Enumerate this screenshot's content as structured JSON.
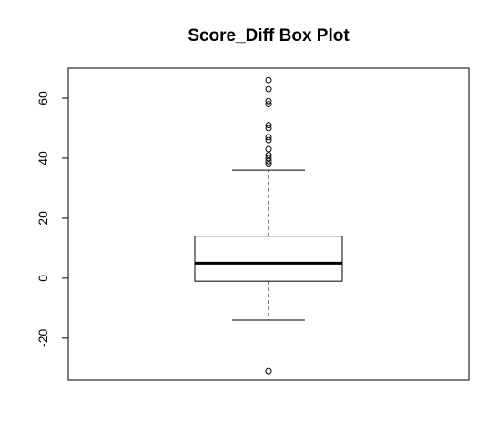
{
  "chart_data": {
    "type": "boxplot",
    "title": "Score_Diff  Box Plot",
    "xlabel": "",
    "ylabel": "",
    "ylim": [
      -34,
      70
    ],
    "yticks": [
      -20,
      0,
      20,
      40,
      60
    ],
    "grid": false,
    "series": [
      {
        "whisker_low": -14,
        "q1": -1,
        "median": 5,
        "q3": 14,
        "whisker_high": 36,
        "outliers": [
          66,
          63,
          59,
          58,
          51,
          50,
          47,
          46,
          43,
          41,
          40,
          39,
          38,
          -31
        ]
      }
    ]
  }
}
